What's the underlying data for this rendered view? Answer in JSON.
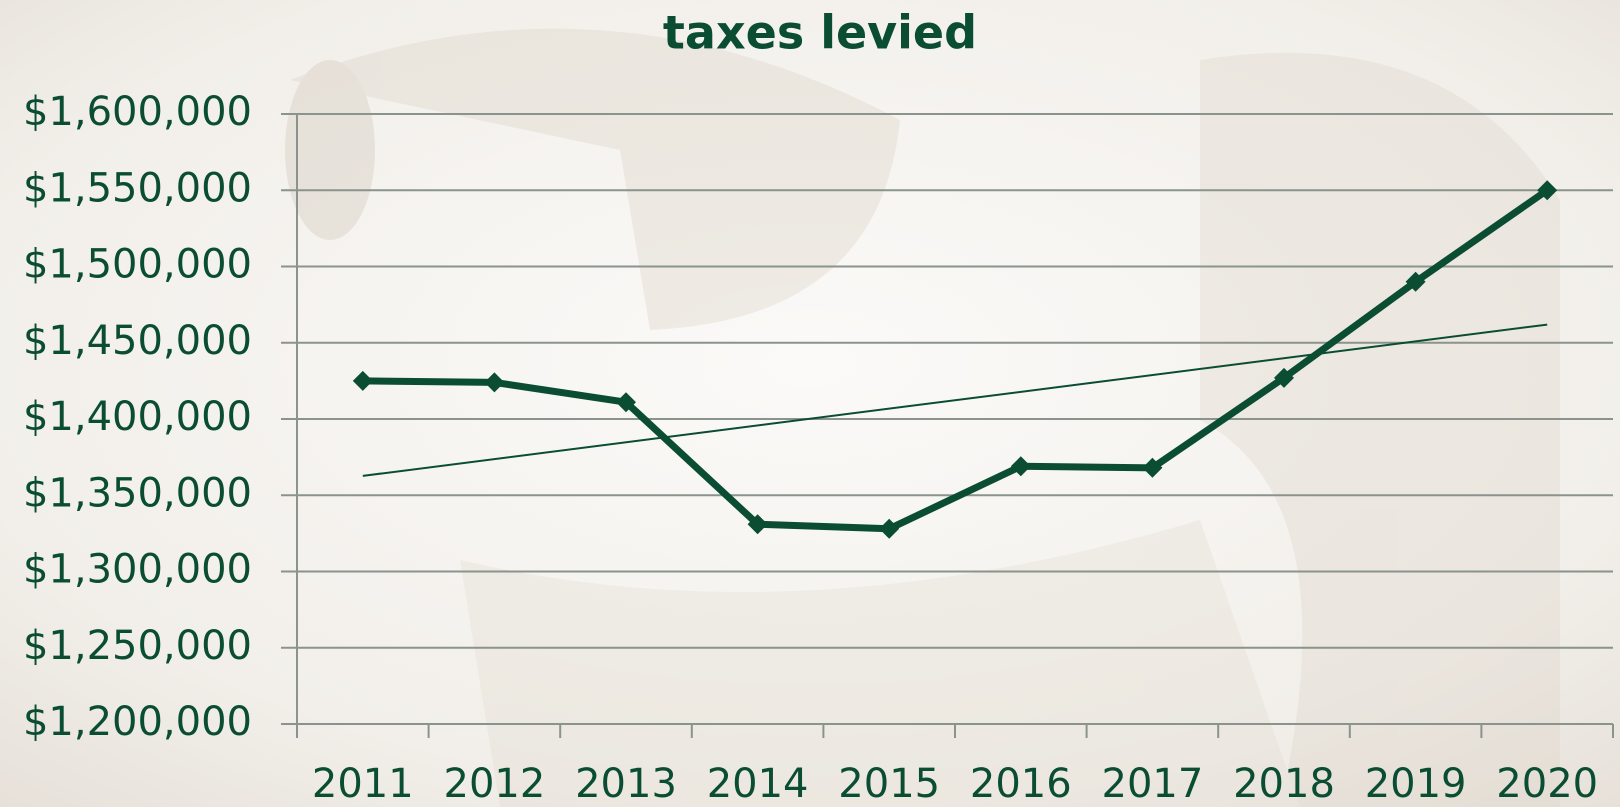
{
  "chart_data": {
    "type": "line",
    "title": "taxes levied",
    "categories": [
      "2011",
      "2012",
      "2013",
      "2014",
      "2015",
      "2016",
      "2017",
      "2018",
      "2019",
      "2020"
    ],
    "series": [
      {
        "name": "taxes levied",
        "color": "#0a4d33",
        "values": [
          1425000,
          1424000,
          1411000,
          1331000,
          1328000,
          1369000,
          1368000,
          1427000,
          1490000,
          1550000
        ]
      }
    ],
    "ylim": [
      1200000,
      1600000
    ],
    "yticks": [
      {
        "value": 1200000,
        "label": "$1,200,000"
      },
      {
        "value": 1250000,
        "label": "$1,250,000"
      },
      {
        "value": 1300000,
        "label": "$1,300,000"
      },
      {
        "value": 1350000,
        "label": "$1,350,000"
      },
      {
        "value": 1400000,
        "label": "$1,400,000"
      },
      {
        "value": 1450000,
        "label": "$1,450,000"
      },
      {
        "value": 1500000,
        "label": "$1,500,000"
      },
      {
        "value": 1550000,
        "label": "$1,550,000"
      },
      {
        "value": 1600000,
        "label": "$1,600,000"
      }
    ],
    "grid": true,
    "trendline": true
  }
}
